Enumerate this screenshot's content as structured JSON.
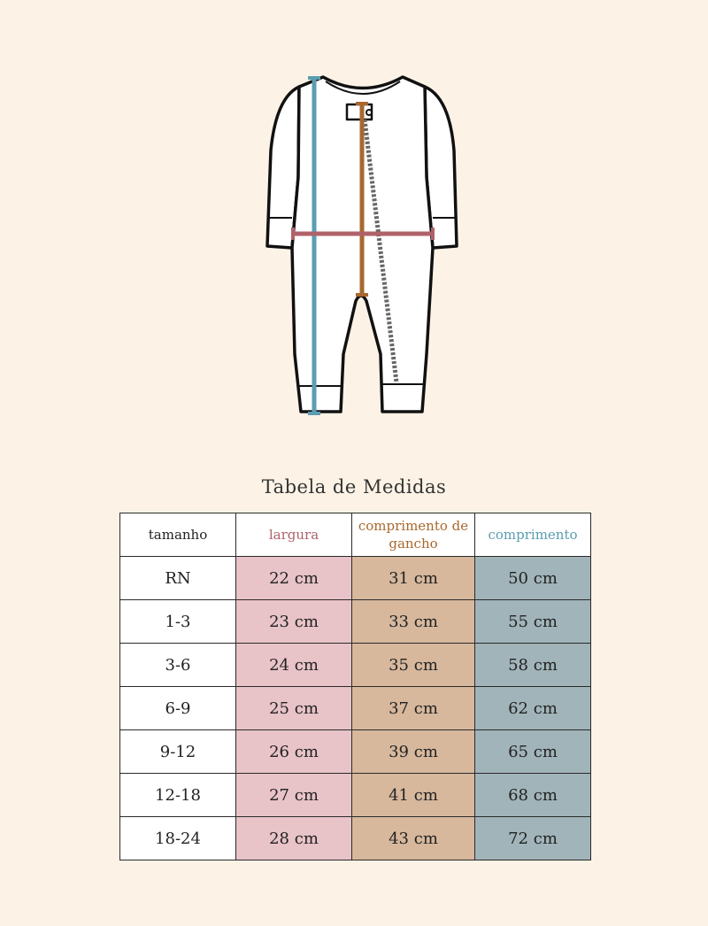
{
  "title": "Tabela de Medidas",
  "colors": {
    "background": "#fcf3e6",
    "largura": "#b0626a",
    "comprimento_de_gancho": "#a8682e",
    "comprimento": "#5b9db1",
    "largura_fill": "#e8c3c8",
    "gancho_fill": "#d7b89d",
    "comprimento_fill": "#a1b4ba"
  },
  "illustration": {
    "icon": "romper-icon"
  },
  "table": {
    "headers": [
      "tamanho",
      "largura",
      "comprimento de gancho",
      "comprimento"
    ],
    "rows": [
      [
        "RN",
        "22 cm",
        "31 cm",
        "50 cm"
      ],
      [
        "1-3",
        "23 cm",
        "33 cm",
        "55 cm"
      ],
      [
        "3-6",
        "24 cm",
        "35 cm",
        "58 cm"
      ],
      [
        "6-9",
        "25 cm",
        "37 cm",
        "62 cm"
      ],
      [
        "9-12",
        "26 cm",
        "39 cm",
        "65 cm"
      ],
      [
        "12-18",
        "27 cm",
        "41 cm",
        "68 cm"
      ],
      [
        "18-24",
        "28 cm",
        "43 cm",
        "72 cm"
      ]
    ]
  }
}
